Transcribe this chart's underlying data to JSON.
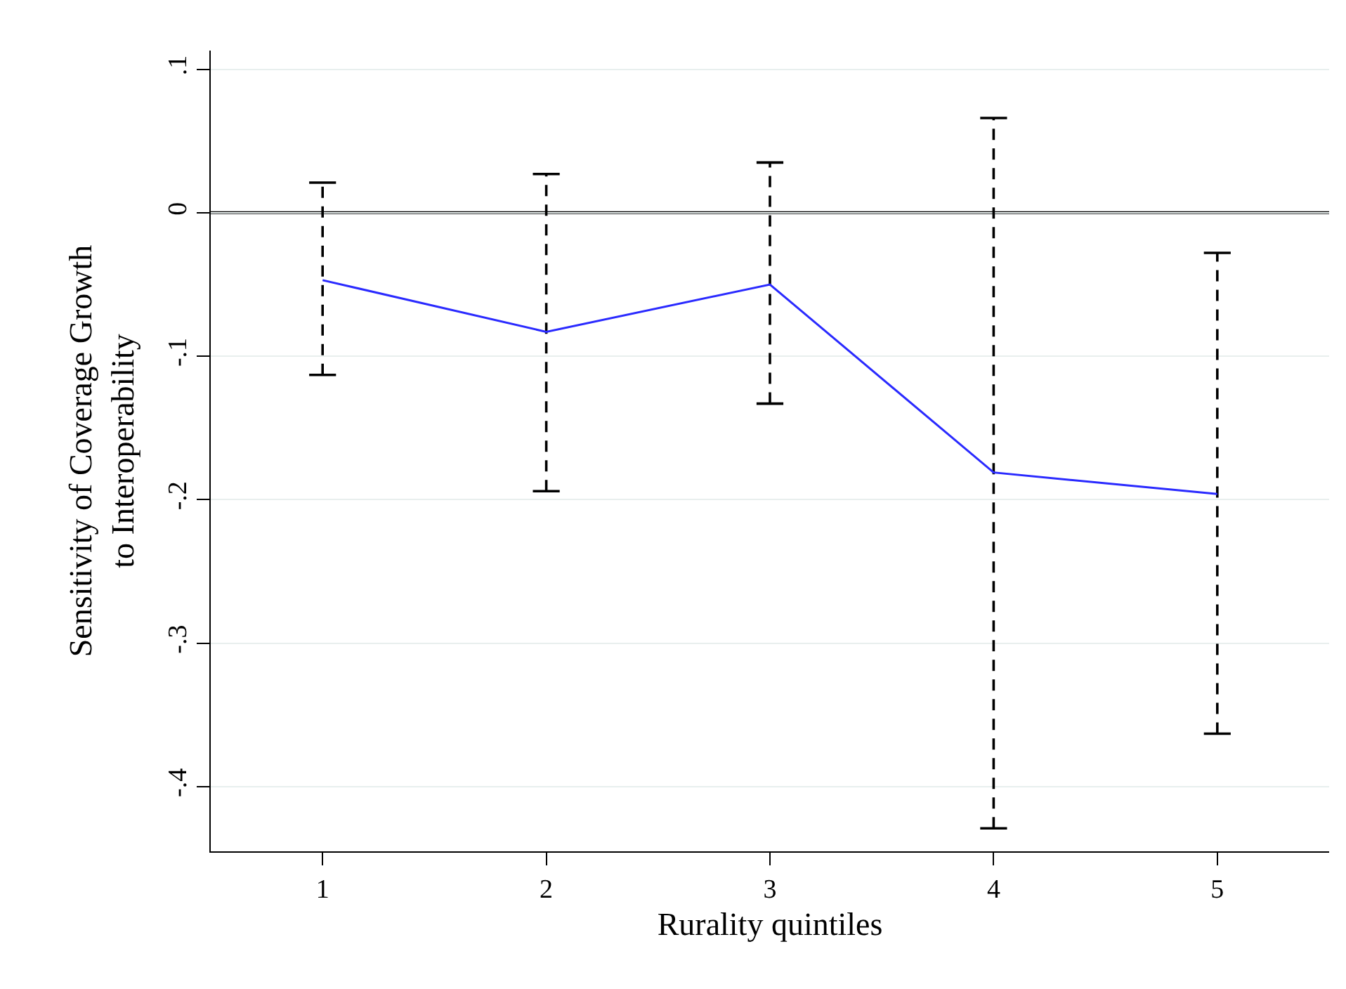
{
  "chart_data": {
    "type": "line",
    "xlabel": "Rurality quintiles",
    "ylabel": "Sensitivity of Coverage Growth\nto Interoperability",
    "x": [
      1,
      2,
      3,
      4,
      5
    ],
    "series": [
      {
        "color": "#2a2aff",
        "values": [
          -0.047,
          -0.083,
          -0.05,
          -0.181,
          -0.196
        ],
        "errors": [
          [
            -0.113,
            0.021
          ],
          [
            -0.194,
            0.027
          ],
          [
            -0.133,
            0.035
          ],
          [
            -0.429,
            0.066
          ],
          [
            -0.363,
            -0.028
          ]
        ]
      }
    ],
    "xlim": [
      0.5,
      5.5
    ],
    "ylim": [
      -0.445,
      0.113
    ],
    "xticks": [
      1,
      2,
      3,
      4,
      5
    ],
    "yticks": [
      {
        "value": 0.1,
        "label": ".1"
      },
      0,
      {
        "value": -0.1,
        "label": "-.1"
      },
      {
        "value": -0.2,
        "label": "-.2"
      },
      {
        "value": -0.3,
        "label": "-.3"
      },
      {
        "value": -0.4,
        "label": "-.4"
      }
    ],
    "ref_lines": [
      {
        "axis": "y",
        "value": 0,
        "color": "#000000"
      }
    ],
    "grid": "y",
    "marker": "none",
    "line_style": "solid"
  }
}
